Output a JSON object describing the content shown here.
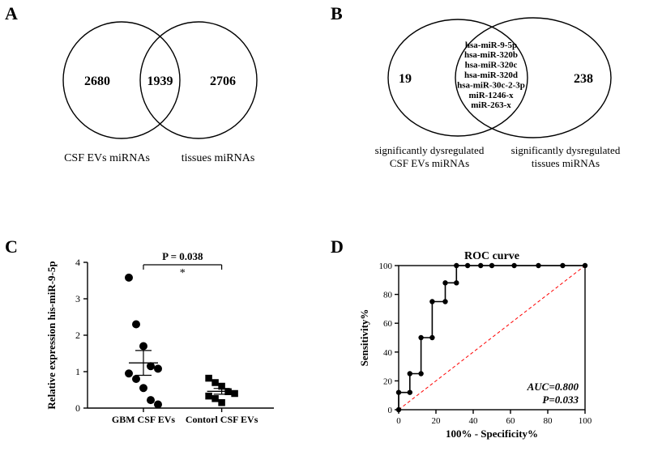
{
  "labels": {
    "A": "A",
    "B": "B",
    "C": "C",
    "D": "D"
  },
  "panelA": {
    "left_value": "2680",
    "overlap_value": "1939",
    "right_value": "2706",
    "left_label": "CSF EVs miRNAs",
    "right_label": "tissues miRNAs",
    "circle_stroke": "#000000",
    "circle_stroke_width": 1.4,
    "value_fontsize": 16,
    "label_fontsize": 14
  },
  "panelB": {
    "left_value": "19",
    "right_value": "238",
    "overlap_list": [
      "hsa-miR-9-5p",
      "hsa-miR-320b",
      "hsa-miR-320c",
      "hsa-miR-320d",
      "hsa-miR-30c-2-3p",
      "miR-1246-x",
      "miR-263-x"
    ],
    "left_label_line1": "significantly dysregulated",
    "left_label_line2": "CSF EVs miRNAs",
    "right_label_line1": "significantly dysregulated",
    "right_label_line2": "tissues miRNAs",
    "circle_stroke": "#000000",
    "circle_stroke_width": 1.4,
    "value_fontsize": 16,
    "list_fontsize": 11,
    "label_fontsize": 13
  },
  "panelC": {
    "type": "scatter",
    "title_p": "P = 0.038",
    "star": "*",
    "ylabel": "Relative expression his-miR-9-5p",
    "ylim": [
      0,
      4
    ],
    "ytick_step": 1,
    "groups": [
      {
        "name": "GBM CSF EVs",
        "marker": "circle"
      },
      {
        "name": "Contorl CSF EVs",
        "marker": "square"
      }
    ],
    "points_gbm": [
      3.58,
      2.3,
      1.7,
      1.15,
      1.08,
      0.95,
      0.8,
      0.55,
      0.22,
      0.1
    ],
    "points_ctrl": [
      0.82,
      0.7,
      0.6,
      0.45,
      0.4,
      0.33,
      0.26,
      0.15
    ],
    "mean_gbm": 1.24,
    "sem_gbm": 0.34,
    "mean_ctrl": 0.46,
    "sem_ctrl": 0.08,
    "marker_color": "#000000",
    "marker_size": 5,
    "axis_color": "#000000",
    "axis_width": 1.4,
    "label_fontsize": 13,
    "tick_fontsize": 12
  },
  "panelD": {
    "type": "roc-step",
    "title": "ROC curve",
    "xlabel": "100% - Specificity%",
    "ylabel": "Sensitivity%",
    "xlim": [
      0,
      100
    ],
    "ylim": [
      0,
      100
    ],
    "tick_step": 20,
    "auc_line": "AUC=0.800",
    "p_line": "P=0.033",
    "roc_points": [
      [
        0,
        0
      ],
      [
        0,
        12
      ],
      [
        6,
        12
      ],
      [
        6,
        25
      ],
      [
        12,
        25
      ],
      [
        12,
        50
      ],
      [
        18,
        50
      ],
      [
        18,
        75
      ],
      [
        25,
        75
      ],
      [
        25,
        88
      ],
      [
        31,
        88
      ],
      [
        31,
        100
      ],
      [
        37,
        100
      ],
      [
        44,
        100
      ],
      [
        50,
        100
      ],
      [
        62,
        100
      ],
      [
        75,
        100
      ],
      [
        88,
        100
      ],
      [
        100,
        100
      ]
    ],
    "curve_color": "#000000",
    "curve_width": 1.6,
    "dot_color": "#000000",
    "dot_radius": 3.2,
    "diagonal_color": "#ff0000",
    "diagonal_dash": "4,3",
    "axis_color": "#000000",
    "axis_width": 1.4,
    "label_fontsize": 13,
    "tick_fontsize": 11,
    "title_fontsize": 14
  }
}
